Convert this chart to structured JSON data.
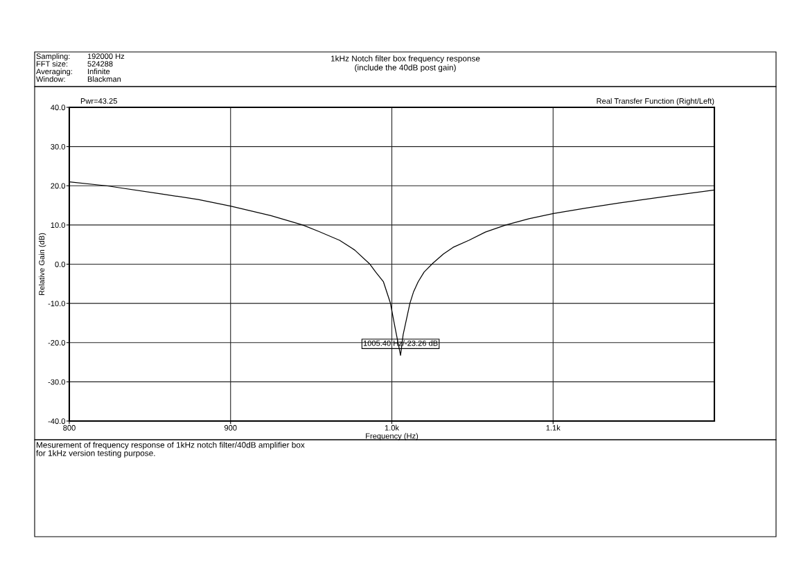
{
  "chart_data": {
    "type": "line",
    "title": "1kHz Notch filter box frequency response",
    "subtitle": "(include the 40dB post gain)",
    "xlabel": "Frequency (Hz)",
    "ylabel": "Relative Gain (dB)",
    "annotations": [
      "Sampling:",
      "192000 Hz",
      "FFT size:",
      "524288",
      "Averaging:",
      "Infinite",
      "Window:",
      "Blackman",
      "Pwr=43.25",
      "Real Transfer Function (Right/Left)",
      {
        "text": "1005.40 Hz/-23.26 dB",
        "x": 1005.4,
        "y": -23.26
      },
      "Mesurement of frequency response of 1kHz notch filter/40dB amplifier box\nfor 1kHz version testing purpose."
    ],
    "series": [
      {
        "color": "#000000",
        "x": [
          800,
          822.9,
          857.3,
          880,
          900,
          925,
          944.7,
          955,
          967.6,
          977,
          986.2,
          990,
          994.8,
          999.1,
          1002,
          1005.4,
          1007,
          1011.2,
          1013.5,
          1016.3,
          1020,
          1025.6,
          1032,
          1038,
          1047.8,
          1058,
          1070.7,
          1085,
          1100.1,
          1120,
          1140.9,
          1170,
          1199.7
        ],
        "values": [
          21.0,
          20.0,
          17.9,
          16.5,
          14.8,
          12.4,
          10.0,
          8.3,
          6.1,
          3.6,
          0.1,
          -2.0,
          -4.5,
          -9.9,
          -16.2,
          -23.26,
          -18.0,
          -10.0,
          -7.0,
          -4.5,
          -2.0,
          0.3,
          2.6,
          4.3,
          6.1,
          8.2,
          10.0,
          11.6,
          12.9,
          14.3,
          15.6,
          17.3,
          18.9
        ]
      }
    ],
    "xlim": [
      800,
      1200
    ],
    "xticks": [
      800,
      900,
      {
        "value": 1000,
        "label": "1.0k"
      },
      {
        "value": 1100,
        "label": "1.1k"
      }
    ],
    "ylim": [
      -40,
      40
    ],
    "yticks": [
      {
        "value": -40,
        "label": "-40.0"
      },
      {
        "value": -30,
        "label": "-30.0"
      },
      {
        "value": -20,
        "label": "-20.0"
      },
      {
        "value": -10,
        "label": "-10.0"
      },
      {
        "value": 0,
        "label": "0.0"
      },
      {
        "value": 10,
        "label": "10.0"
      },
      {
        "value": 20,
        "label": "20.0"
      },
      {
        "value": 30,
        "label": "30.0"
      },
      {
        "value": 40,
        "label": "40.0"
      }
    ],
    "grid": true,
    "marker": "none",
    "line_style": "solid"
  }
}
